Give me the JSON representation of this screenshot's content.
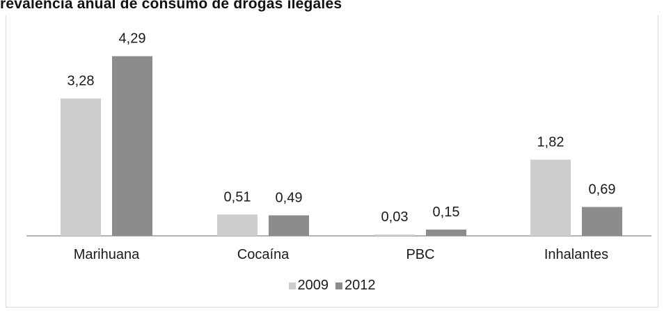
{
  "chart_data": {
    "type": "bar",
    "title": "revalencia anual de consumo de drogas ilegales",
    "xlabel": "",
    "ylabel": "",
    "ylim": [
      0,
      4.6
    ],
    "grid": false,
    "legend_position": "bottom",
    "categories": [
      "Marihuana",
      "Cocaína",
      "PBC",
      "Inhalantes"
    ],
    "series": [
      {
        "name": "2009",
        "color": "#cdcdcd",
        "values": [
          3.28,
          0.51,
          0.03,
          1.82
        ],
        "labels": [
          "3,28",
          "0,51",
          "0,03",
          "1,82"
        ]
      },
      {
        "name": "2012",
        "color": "#8c8c8c",
        "values": [
          4.29,
          0.49,
          0.15,
          0.69
        ],
        "labels": [
          "4,29",
          "0,49",
          "0,15",
          "0,69"
        ]
      }
    ]
  }
}
